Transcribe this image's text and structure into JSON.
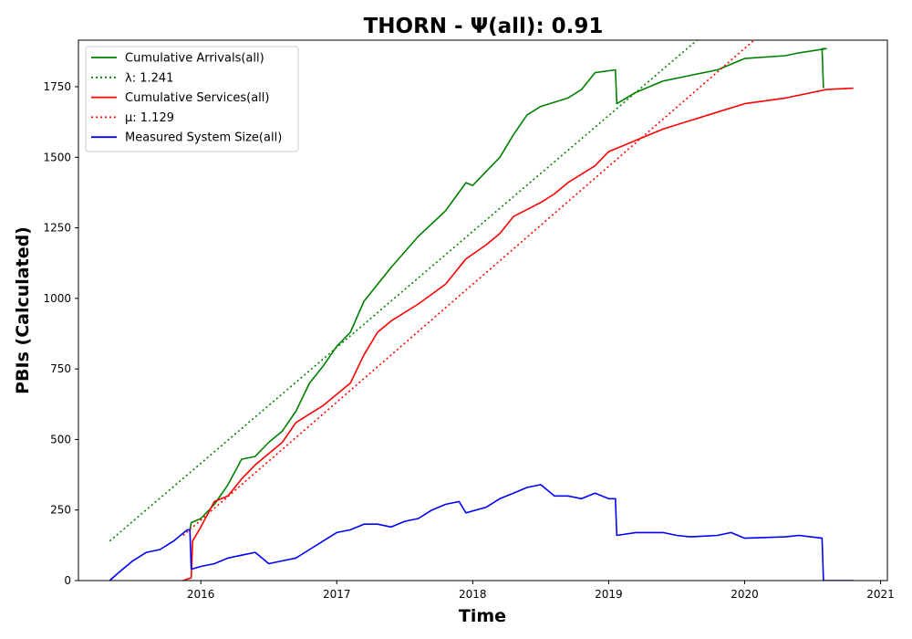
{
  "chart_data": {
    "type": "line",
    "title": "THORN -  Ψ(all): 0.91",
    "xlabel": "Time",
    "ylabel": "PBIs (Calculated)",
    "xlim": [
      2015.1,
      2021.05
    ],
    "ylim": [
      0,
      1915
    ],
    "x_ticks": [
      2016,
      2017,
      2018,
      2019,
      2020,
      2021
    ],
    "x_tick_labels": [
      "2016",
      "2017",
      "2018",
      "2019",
      "2020",
      "2021"
    ],
    "y_ticks": [
      0,
      250,
      500,
      750,
      1000,
      1250,
      1500,
      1750
    ],
    "y_tick_labels": [
      "0",
      "250",
      "500",
      "750",
      "1000",
      "1250",
      "1500",
      "1750"
    ],
    "grid": false,
    "legend_position": "top-left",
    "series": [
      {
        "name": "Cumulative Arrivals(all)",
        "color": "#008000",
        "style": "solid",
        "points": [
          [
            2015.92,
            180
          ],
          [
            2015.93,
            205
          ],
          [
            2016.0,
            220
          ],
          [
            2016.1,
            270
          ],
          [
            2016.2,
            340
          ],
          [
            2016.3,
            430
          ],
          [
            2016.4,
            440
          ],
          [
            2016.5,
            490
          ],
          [
            2016.6,
            530
          ],
          [
            2016.7,
            600
          ],
          [
            2016.8,
            700
          ],
          [
            2016.9,
            760
          ],
          [
            2017.0,
            830
          ],
          [
            2017.1,
            880
          ],
          [
            2017.2,
            990
          ],
          [
            2017.4,
            1110
          ],
          [
            2017.6,
            1220
          ],
          [
            2017.8,
            1310
          ],
          [
            2017.95,
            1410
          ],
          [
            2018.0,
            1400
          ],
          [
            2018.1,
            1450
          ],
          [
            2018.2,
            1500
          ],
          [
            2018.3,
            1580
          ],
          [
            2018.4,
            1650
          ],
          [
            2018.5,
            1680
          ],
          [
            2018.7,
            1710
          ],
          [
            2018.8,
            1740
          ],
          [
            2018.9,
            1800
          ],
          [
            2019.05,
            1810
          ],
          [
            2019.06,
            1690
          ],
          [
            2019.2,
            1730
          ],
          [
            2019.4,
            1770
          ],
          [
            2019.6,
            1790
          ],
          [
            2019.8,
            1810
          ],
          [
            2020.0,
            1850
          ],
          [
            2020.3,
            1860
          ],
          [
            2020.4,
            1870
          ],
          [
            2020.6,
            1885
          ],
          [
            2020.57,
            1885
          ],
          [
            2020.58,
            1745
          ]
        ]
      },
      {
        "name": "λ: 1.241",
        "color": "#008000",
        "style": "dotted",
        "points": [
          [
            2015.33,
            140
          ],
          [
            2019.65,
            1915
          ]
        ]
      },
      {
        "name": "Cumulative Services(all)",
        "color": "#ff0000",
        "style": "solid",
        "points": [
          [
            2015.87,
            0
          ],
          [
            2015.93,
            10
          ],
          [
            2015.94,
            140
          ],
          [
            2016.0,
            190
          ],
          [
            2016.1,
            280
          ],
          [
            2016.2,
            300
          ],
          [
            2016.3,
            360
          ],
          [
            2016.4,
            410
          ],
          [
            2016.5,
            450
          ],
          [
            2016.6,
            490
          ],
          [
            2016.7,
            560
          ],
          [
            2016.8,
            590
          ],
          [
            2016.9,
            620
          ],
          [
            2017.0,
            660
          ],
          [
            2017.1,
            700
          ],
          [
            2017.2,
            800
          ],
          [
            2017.3,
            880
          ],
          [
            2017.4,
            920
          ],
          [
            2017.6,
            980
          ],
          [
            2017.8,
            1050
          ],
          [
            2017.95,
            1140
          ],
          [
            2018.1,
            1190
          ],
          [
            2018.2,
            1230
          ],
          [
            2018.3,
            1290
          ],
          [
            2018.5,
            1340
          ],
          [
            2018.6,
            1370
          ],
          [
            2018.7,
            1410
          ],
          [
            2018.9,
            1470
          ],
          [
            2019.0,
            1520
          ],
          [
            2019.2,
            1560
          ],
          [
            2019.4,
            1600
          ],
          [
            2019.6,
            1630
          ],
          [
            2019.8,
            1660
          ],
          [
            2020.0,
            1690
          ],
          [
            2020.3,
            1710
          ],
          [
            2020.6,
            1740
          ],
          [
            2020.8,
            1745
          ]
        ]
      },
      {
        "name": "μ: 1.129",
        "color": "#ff0000",
        "style": "dotted",
        "points": [
          [
            2015.87,
            160
          ],
          [
            2020.07,
            1915
          ]
        ]
      },
      {
        "name": "Measured System Size(all)",
        "color": "#0000ff",
        "style": "solid",
        "points": [
          [
            2015.33,
            0
          ],
          [
            2015.4,
            30
          ],
          [
            2015.5,
            70
          ],
          [
            2015.6,
            100
          ],
          [
            2015.7,
            110
          ],
          [
            2015.8,
            140
          ],
          [
            2015.9,
            180
          ],
          [
            2015.92,
            180
          ],
          [
            2015.93,
            40
          ],
          [
            2016.0,
            50
          ],
          [
            2016.1,
            60
          ],
          [
            2016.2,
            80
          ],
          [
            2016.3,
            90
          ],
          [
            2016.4,
            100
          ],
          [
            2016.45,
            80
          ],
          [
            2016.5,
            60
          ],
          [
            2016.6,
            70
          ],
          [
            2016.7,
            80
          ],
          [
            2016.8,
            110
          ],
          [
            2016.9,
            140
          ],
          [
            2017.0,
            170
          ],
          [
            2017.1,
            180
          ],
          [
            2017.2,
            200
          ],
          [
            2017.3,
            200
          ],
          [
            2017.4,
            190
          ],
          [
            2017.5,
            210
          ],
          [
            2017.6,
            220
          ],
          [
            2017.7,
            250
          ],
          [
            2017.8,
            270
          ],
          [
            2017.9,
            280
          ],
          [
            2017.95,
            240
          ],
          [
            2018.1,
            260
          ],
          [
            2018.2,
            290
          ],
          [
            2018.3,
            310
          ],
          [
            2018.4,
            330
          ],
          [
            2018.5,
            340
          ],
          [
            2018.6,
            300
          ],
          [
            2018.7,
            300
          ],
          [
            2018.8,
            290
          ],
          [
            2018.9,
            310
          ],
          [
            2019.0,
            290
          ],
          [
            2019.05,
            290
          ],
          [
            2019.06,
            160
          ],
          [
            2019.2,
            170
          ],
          [
            2019.4,
            170
          ],
          [
            2019.5,
            160
          ],
          [
            2019.6,
            155
          ],
          [
            2019.8,
            160
          ],
          [
            2019.9,
            170
          ],
          [
            2020.0,
            150
          ],
          [
            2020.3,
            155
          ],
          [
            2020.4,
            160
          ],
          [
            2020.57,
            150
          ],
          [
            2020.58,
            0
          ],
          [
            2020.8,
            0
          ]
        ]
      }
    ]
  }
}
